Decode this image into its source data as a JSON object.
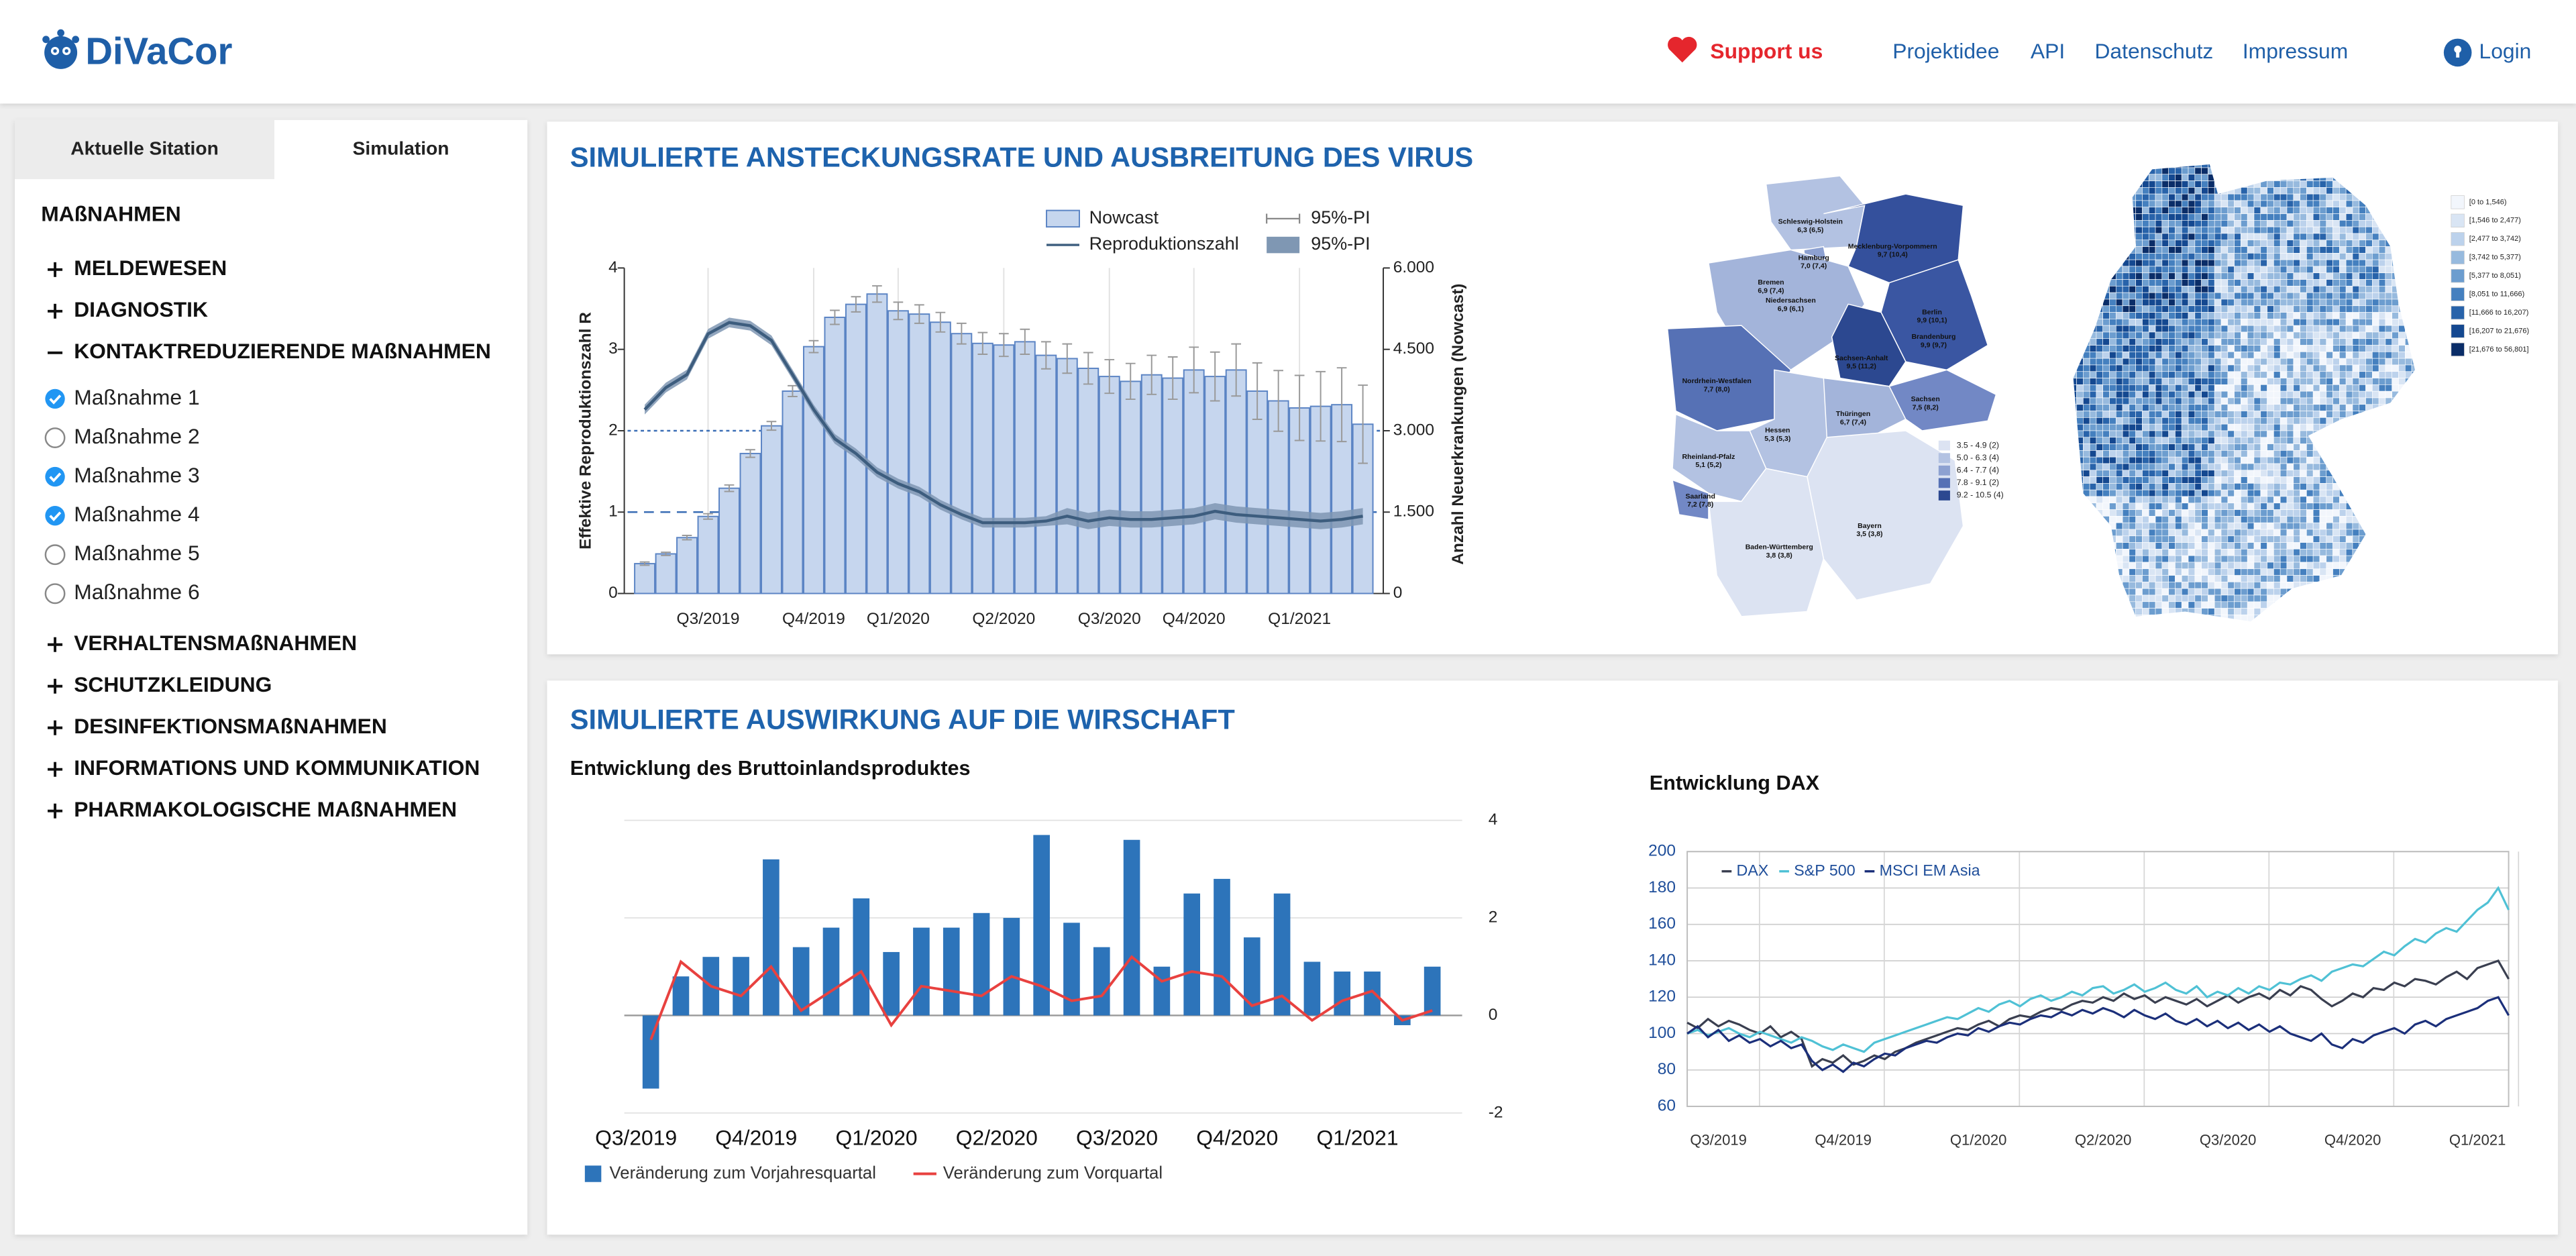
{
  "header": {
    "logo": "DiVaCor",
    "support": "Support us",
    "nav": [
      "Projektidee",
      "API",
      "Datenschutz",
      "Impressum"
    ],
    "login": "Login"
  },
  "sidebar": {
    "tabs": [
      "Aktuelle Sitation",
      "Simulation"
    ],
    "active_tab": 1,
    "heading": "MAßNAHMEN",
    "groups": [
      {
        "label": "MELDEWESEN",
        "expanded": false
      },
      {
        "label": "DIAGNOSTIK",
        "expanded": false
      },
      {
        "label": "KONTAKTREDUZIERENDE MAßNAHMEN",
        "expanded": true,
        "items": [
          {
            "label": "Maßnahme 1",
            "checked": true
          },
          {
            "label": "Maßnahme 2",
            "checked": false
          },
          {
            "label": "Maßnahme 3",
            "checked": true
          },
          {
            "label": "Maßnahme 4",
            "checked": true
          },
          {
            "label": "Maßnahme 5",
            "checked": false
          },
          {
            "label": "Maßnahme 6",
            "checked": false
          }
        ]
      },
      {
        "label": "VERHALTENSMAßNAHMEN",
        "expanded": false
      },
      {
        "label": "SCHUTZKLEIDUNG",
        "expanded": false
      },
      {
        "label": "DESINFEKTIONSMAßNAHMEN",
        "expanded": false
      },
      {
        "label": "INFORMATIONS UND KOMMUNIKATION",
        "expanded": false
      },
      {
        "label": "PHARMAKOLOGISCHE MAßNAHMEN",
        "expanded": false
      }
    ]
  },
  "panels": [
    "SIMULIERTE ANSTECKUNGSRATE UND AUSBREITUNG DES VIRUS",
    "SIMULIERTE AUSWIRKUNG AUF DIE WIRSCHAFT"
  ],
  "chart_data": [
    {
      "type": "combo",
      "y_label": "Effektive Reproduktionszahl R",
      "y2_label": "Anzahl Neuerkrankungen (Nowcast)",
      "categories": [
        null,
        null,
        null,
        "Q3/2019",
        null,
        null,
        null,
        null,
        "Q4/2019",
        null,
        null,
        null,
        "Q1/2020",
        null,
        null,
        null,
        null,
        "Q2/2020",
        null,
        null,
        null,
        null,
        "Q3/2020",
        null,
        null,
        null,
        "Q4/2020",
        null,
        null,
        null,
        null,
        "Q1/2021",
        null,
        null,
        null
      ],
      "ylim": [
        0,
        4
      ],
      "yticks": [
        0,
        1,
        2,
        3,
        4
      ],
      "y2lim": [
        0,
        6000
      ],
      "y2ticks": [
        0,
        {
          "value": 1500,
          "label": "1.500"
        },
        {
          "value": 3000,
          "label": "3.000"
        },
        {
          "value": 4500,
          "label": "4.500"
        },
        {
          "value": 6000,
          "label": "6.000"
        }
      ],
      "hlines": [
        2,
        1
      ],
      "xgrid": true,
      "grid": false,
      "series": [
        {
          "name": "Nowcast",
          "type": "bar",
          "axis": "y2",
          "color": "#c6d6ee",
          "edge": "#5b84c4",
          "values": [
            550,
            730,
            1030,
            1420,
            1940,
            2580,
            3090,
            3730,
            4550,
            5090,
            5330,
            5520,
            5210,
            5150,
            5000,
            4790,
            4610,
            4580,
            4640,
            4390,
            4330,
            4150,
            4000,
            3910,
            4030,
            3970,
            4120,
            4000,
            4120,
            3730,
            3550,
            3420,
            3450,
            3480,
            3120
          ],
          "errors": [
            30,
            30,
            40,
            50,
            60,
            70,
            80,
            100,
            110,
            130,
            140,
            150,
            160,
            170,
            180,
            190,
            200,
            210,
            230,
            250,
            270,
            290,
            310,
            330,
            360,
            390,
            420,
            450,
            480,
            520,
            560,
            600,
            640,
            680,
            720
          ],
          "error_name": "95%-PI"
        },
        {
          "name": "Reproduktionszahl",
          "type": "line",
          "color": "#3d5d7e",
          "values": [
            2.26,
            2.53,
            2.69,
            3.19,
            3.33,
            3.29,
            3.11,
            2.69,
            2.26,
            1.9,
            1.72,
            1.49,
            1.35,
            1.25,
            1.09,
            0.97,
            0.87,
            0.87,
            0.87,
            0.89,
            0.95,
            0.89,
            0.93,
            0.91,
            0.91,
            0.93,
            0.95,
            1.01,
            0.97,
            0.95,
            0.93,
            0.91,
            0.89,
            0.91,
            0.95
          ],
          "lower": [
            2.2,
            2.47,
            2.63,
            3.13,
            3.27,
            3.23,
            3.05,
            2.63,
            2.2,
            1.84,
            1.66,
            1.43,
            1.29,
            1.19,
            1.03,
            0.91,
            0.81,
            0.81,
            0.81,
            0.83,
            0.85,
            0.79,
            0.83,
            0.81,
            0.81,
            0.83,
            0.85,
            0.91,
            0.87,
            0.85,
            0.83,
            0.81,
            0.79,
            0.81,
            0.85
          ],
          "upper": [
            2.32,
            2.59,
            2.75,
            3.25,
            3.39,
            3.35,
            3.17,
            2.75,
            2.32,
            1.96,
            1.78,
            1.55,
            1.41,
            1.31,
            1.15,
            1.03,
            0.93,
            0.93,
            0.93,
            0.95,
            1.05,
            0.99,
            1.03,
            1.01,
            1.01,
            1.03,
            1.05,
            1.11,
            1.07,
            1.05,
            1.03,
            1.01,
            0.99,
            1.01,
            1.05
          ],
          "band_name": "95%-PI",
          "band_color": "#7f97b3"
        }
      ]
    },
    {
      "type": "combo",
      "title": "Entwicklung des Bruttoinlandsproduktes",
      "categories": [
        "Q3/2019",
        null,
        null,
        null,
        "Q4/2019",
        null,
        null,
        null,
        "Q1/2020",
        null,
        null,
        null,
        "Q2/2020",
        null,
        null,
        null,
        "Q3/2020",
        null,
        null,
        null,
        "Q4/2020",
        null,
        null,
        null,
        "Q1/2021",
        null,
        null
      ],
      "ylim": [
        -2,
        4
      ],
      "yticks": [
        -2,
        0,
        2,
        4
      ],
      "grid": true,
      "xgrid": false,
      "series": [
        {
          "name": "Veränderung zum Vorjahresquartal",
          "type": "bar",
          "color": "#2d74ba",
          "values": [
            -1.5,
            0.8,
            1.2,
            1.2,
            3.2,
            1.4,
            1.8,
            2.4,
            1.3,
            1.8,
            1.8,
            2.1,
            2.0,
            3.7,
            1.9,
            1.4,
            3.6,
            1.0,
            2.5,
            2.8,
            1.6,
            2.5,
            1.1,
            0.9,
            0.9,
            -0.2,
            1.0
          ]
        },
        {
          "name": "Veränderung zum Vorquartal",
          "type": "line",
          "color": "#e8413f",
          "values": [
            -0.5,
            1.1,
            0.6,
            0.4,
            1.0,
            0.1,
            0.5,
            0.9,
            -0.2,
            0.6,
            0.5,
            0.4,
            0.8,
            0.6,
            0.3,
            0.4,
            1.2,
            0.7,
            0.9,
            0.8,
            0.2,
            0.4,
            -0.1,
            0.3,
            0.5,
            -0.1,
            0.1
          ]
        }
      ]
    },
    {
      "type": "line",
      "title": "Entwicklung DAX",
      "categories": [
        null,
        null,
        null,
        "Q3/2019",
        null,
        null,
        null,
        null,
        null,
        null,
        null,
        null,
        null,
        null,
        null,
        "Q4/2019",
        null,
        null,
        null,
        null,
        null,
        null,
        null,
        null,
        null,
        null,
        null,
        null,
        "Q1/2020",
        null,
        null,
        null,
        null,
        null,
        null,
        null,
        null,
        null,
        null,
        null,
        "Q2/2020",
        null,
        null,
        null,
        null,
        null,
        null,
        null,
        null,
        null,
        null,
        null,
        "Q3/2020",
        null,
        null,
        null,
        null,
        null,
        null,
        null,
        null,
        null,
        null,
        null,
        "Q4/2020",
        null,
        null,
        null,
        null,
        null,
        null,
        null,
        null,
        null,
        null,
        null,
        "Q1/2021",
        null,
        null,
        null
      ],
      "ylim": [
        60,
        200
      ],
      "yticks": [
        60,
        80,
        100,
        120,
        140,
        160,
        180,
        200
      ],
      "grid": true,
      "series": [
        {
          "name": "DAX",
          "color": "#3a3f50",
          "values": [
            106,
            103,
            108,
            104,
            107,
            105,
            102,
            100,
            104,
            98,
            101,
            97,
            82,
            86,
            84,
            88,
            83,
            85,
            88,
            86,
            90,
            92,
            95,
            97,
            99,
            101,
            103,
            102,
            105,
            107,
            104,
            108,
            110,
            109,
            112,
            114,
            113,
            116,
            118,
            117,
            120,
            118,
            122,
            119,
            121,
            117,
            120,
            118,
            116,
            119,
            115,
            118,
            121,
            117,
            120,
            122,
            119,
            124,
            121,
            126,
            124,
            119,
            115,
            118,
            122,
            120,
            125,
            124,
            128,
            126,
            130,
            129,
            127,
            131,
            134,
            130,
            136,
            138,
            140,
            130
          ]
        },
        {
          "name": "S&P 500",
          "color": "#4fc1d5",
          "values": [
            100,
            102,
            99,
            101,
            103,
            100,
            98,
            101,
            99,
            97,
            95,
            98,
            96,
            93,
            91,
            94,
            92,
            90,
            95,
            97,
            99,
            101,
            103,
            105,
            107,
            109,
            108,
            111,
            114,
            112,
            116,
            118,
            115,
            119,
            121,
            118,
            120,
            123,
            121,
            125,
            126,
            122,
            124,
            127,
            123,
            125,
            128,
            124,
            122,
            126,
            120,
            123,
            121,
            125,
            122,
            126,
            124,
            128,
            127,
            130,
            132,
            129,
            134,
            136,
            138,
            137,
            141,
            145,
            143,
            148,
            152,
            150,
            155,
            158,
            156,
            162,
            168,
            172,
            180,
            168
          ]
        },
        {
          "name": "MSCI EM Asia",
          "color": "#1b2f7a",
          "values": [
            100,
            104,
            98,
            102,
            96,
            99,
            95,
            97,
            93,
            96,
            92,
            94,
            85,
            80,
            83,
            79,
            84,
            82,
            86,
            89,
            88,
            92,
            94,
            96,
            95,
            98,
            100,
            99,
            103,
            101,
            104,
            106,
            105,
            108,
            110,
            109,
            112,
            110,
            113,
            111,
            114,
            112,
            109,
            113,
            110,
            108,
            111,
            107,
            105,
            108,
            104,
            107,
            103,
            106,
            102,
            105,
            101,
            104,
            100,
            98,
            96,
            100,
            94,
            92,
            97,
            95,
            99,
            101,
            103,
            100,
            105,
            107,
            104,
            108,
            110,
            112,
            114,
            118,
            120,
            110
          ]
        }
      ]
    }
  ],
  "maps": [
    {
      "states": [
        {
          "name": "Schleswig-Holstein",
          "value": "6,3 (6,5)",
          "color": "#b3c2e2"
        },
        {
          "name": "Hamburg",
          "value": "7,0 (7,4)",
          "color": "#8da1d1"
        },
        {
          "name": "Mecklenburg-Vorpommern",
          "value": "9,7 (10,4)",
          "color": "#34509c"
        },
        {
          "name": "Bremen",
          "value": "6,9 (7,4)",
          "color": "#8da1d1"
        },
        {
          "name": "Niedersachsen",
          "value": "6,9 (6,1)",
          "color": "#a3b4da"
        },
        {
          "name": "Berlin",
          "value": "9,9 (10,1)",
          "color": "#34509c"
        },
        {
          "name": "Brandenburg",
          "value": "9,9 (9,7)",
          "color": "#3a56a2"
        },
        {
          "name": "Sachsen-Anhalt",
          "value": "9,5 (11,2)",
          "color": "#2c4890"
        },
        {
          "name": "Nordrhein-Westfalen",
          "value": "7,7 (8,0)",
          "color": "#5671b5"
        },
        {
          "name": "Hessen",
          "value": "5,3 (5,3)",
          "color": "#b3c2e2"
        },
        {
          "name": "Thüringen",
          "value": "6,7 (7,4)",
          "color": "#a3b4da"
        },
        {
          "name": "Sachsen",
          "value": "7,5 (8,2)",
          "color": "#7288c5"
        },
        {
          "name": "Rheinland-Pfalz",
          "value": "5,1 (5,2)",
          "color": "#b3c2e2"
        },
        {
          "name": "Saarland",
          "value": "7,2 (7,8)",
          "color": "#7288c5"
        },
        {
          "name": "Bayern",
          "value": "3,5 (3,8)",
          "color": "#dce3f2"
        },
        {
          "name": "Baden-Württemberg",
          "value": "3,8 (3,8)",
          "color": "#dce3f2"
        }
      ],
      "legend": [
        {
          "label": "3.5 - 4.9 (2)",
          "color": "#dce3f2"
        },
        {
          "label": "5.0 - 6.3 (4)",
          "color": "#b3c2e2"
        },
        {
          "label": "6.4 - 7.7 (4)",
          "color": "#8da1d1"
        },
        {
          "label": "7.8 - 9.1 (2)",
          "color": "#5671b5"
        },
        {
          "label": "9.2 - 10.5 (4)",
          "color": "#2c4890"
        }
      ]
    },
    {
      "legend": [
        {
          "label": "[0 to 1,546)",
          "color": "#f2f6fc"
        },
        {
          "label": "[1,546 to 2,477)",
          "color": "#d9e5f4"
        },
        {
          "label": "[2,477 to 3,742)",
          "color": "#bcd2ec"
        },
        {
          "label": "[3,742 to 5,377)",
          "color": "#97bade"
        },
        {
          "label": "[5,377 to 8,051)",
          "color": "#6c9dcf"
        },
        {
          "label": "[8,051 to 11,666)",
          "color": "#4580bf"
        },
        {
          "label": "[11,666 to 16,207)",
          "color": "#2863aa"
        },
        {
          "label": "[16,207 to 21,676)",
          "color": "#144890"
        },
        {
          "label": "[21,676 to 56,801]",
          "color": "#0a2d68"
        }
      ]
    }
  ]
}
